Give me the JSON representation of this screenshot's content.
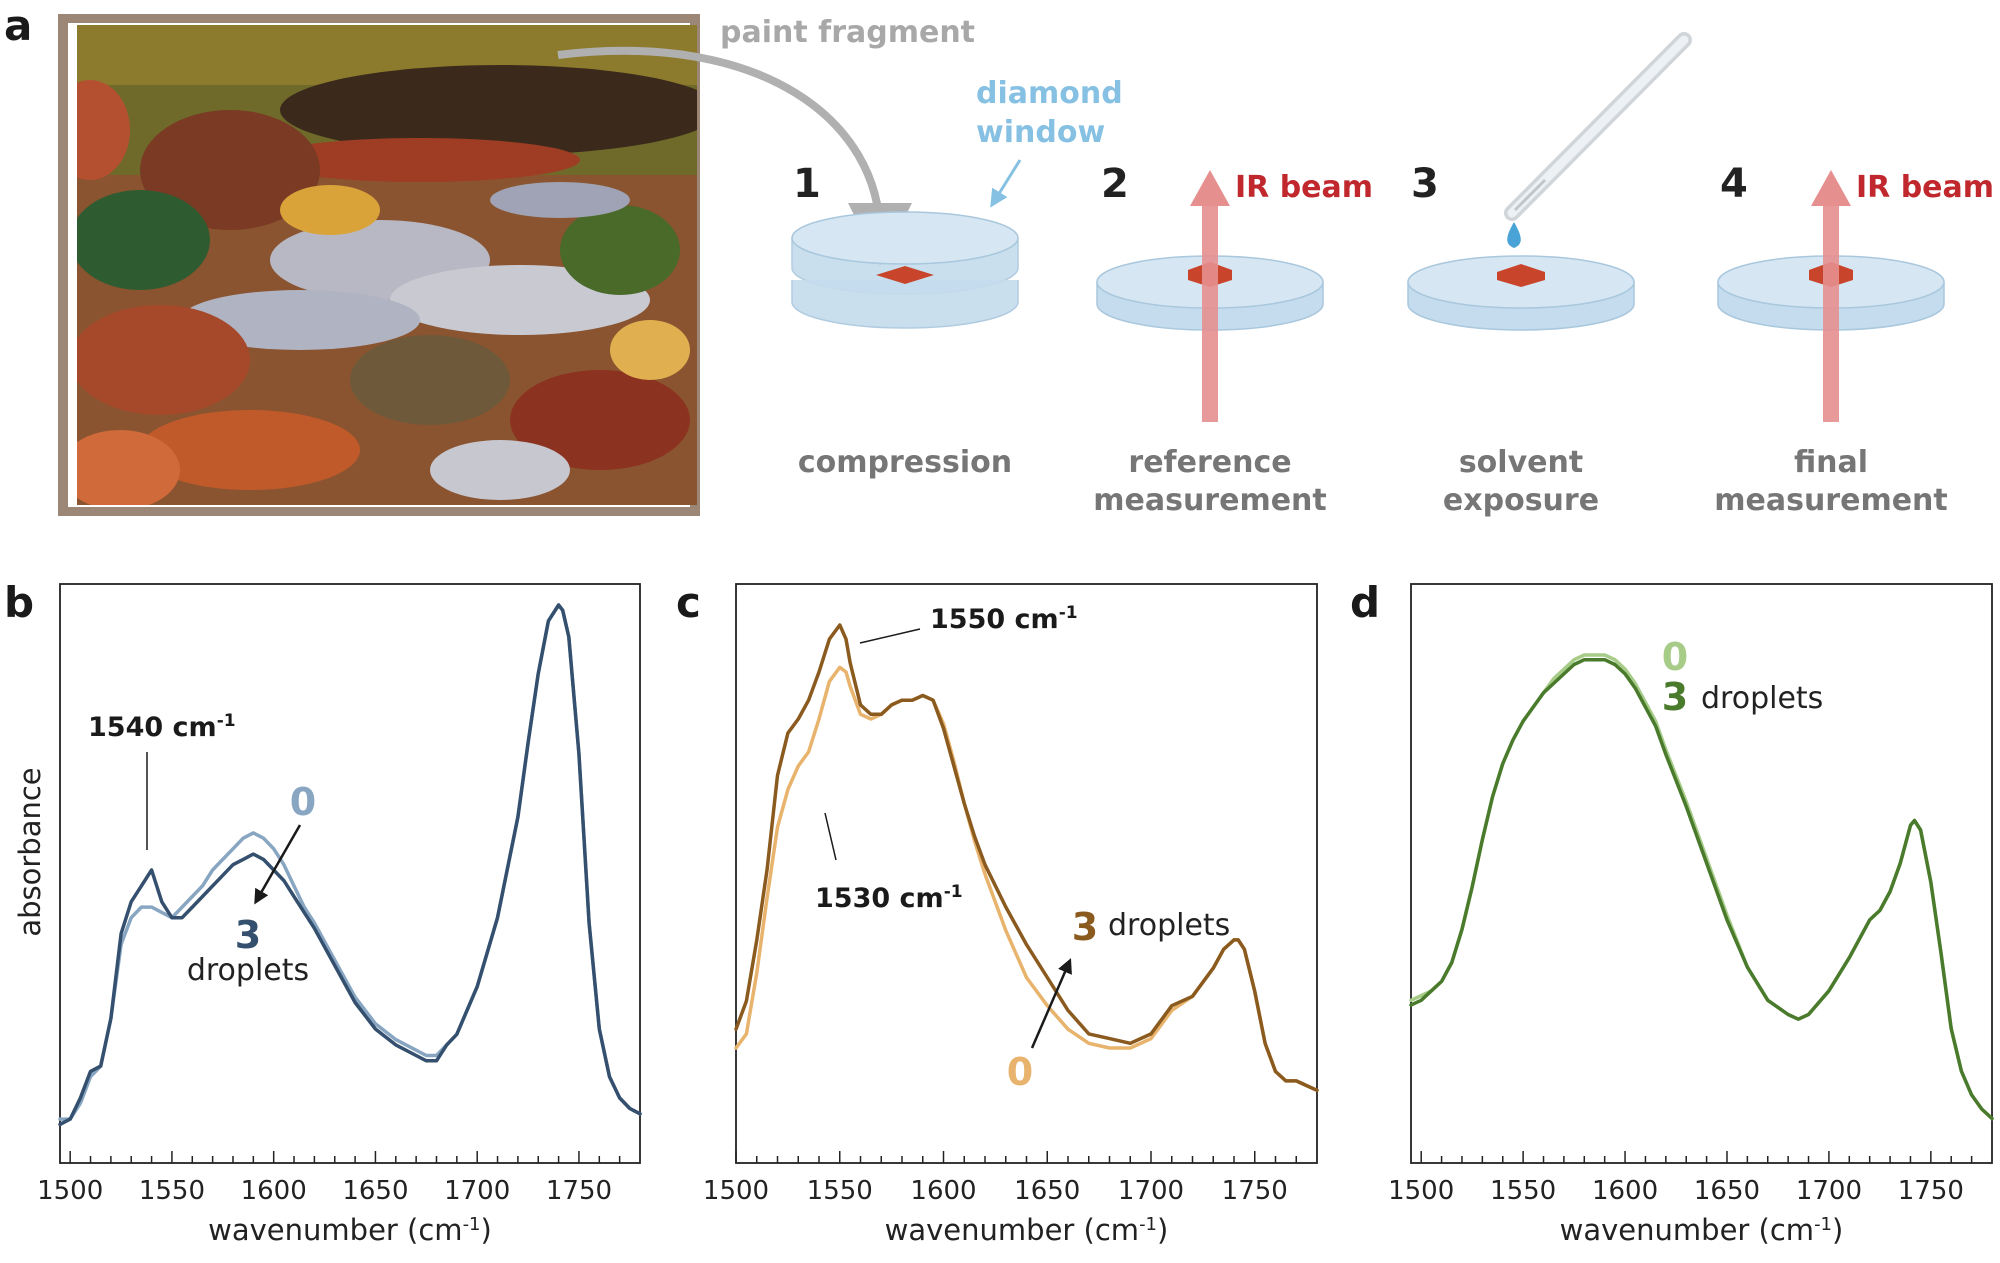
{
  "panel_a": {
    "letter": "a",
    "paint_fragment_label": "paint fragment",
    "diamond_window_label_1": "diamond",
    "diamond_window_label_2": "window",
    "ir_beam_label": "IR beam",
    "steps": [
      {
        "num": "1",
        "label_1": "compression",
        "label_2": ""
      },
      {
        "num": "2",
        "label_1": "reference",
        "label_2": "measurement"
      },
      {
        "num": "3",
        "label_1": "solvent",
        "label_2": "exposure"
      },
      {
        "num": "4",
        "label_1": "final",
        "label_2": "measurement"
      }
    ]
  },
  "colors": {
    "frame": "#9c8676",
    "window": "#c4dced",
    "window_edge": "#a9c7dd",
    "fragment": "#c8452c",
    "ir_arrow": "#e68f8f",
    "droplet": "#4aa3d6",
    "gray_arrow": "#b0b0b0",
    "b_dark": "#34506e",
    "b_light": "#88a6c2",
    "c_dark": "#8a5a1f",
    "c_light": "#e8b36c",
    "d_dark": "#4a7a2c",
    "d_light": "#a6cc88"
  },
  "shared_axis": {
    "ylabel": "absorbance",
    "xlabel_main": "wavenumber (cm",
    "xlabel_sup": "-1",
    "xlabel_close": ")"
  },
  "chart_data": [
    {
      "panel": "b",
      "type": "line",
      "xlabel": "wavenumber (cm-1)",
      "ylabel": "absorbance",
      "xlim": [
        1495,
        1780
      ],
      "ylim": [
        0,
        1
      ],
      "xticks": [
        1500,
        1550,
        1600,
        1650,
        1700,
        1750
      ],
      "annotation": {
        "text": "1540 cm",
        "sup": "-1"
      },
      "series_label_top": "0",
      "series_label_bottom": "3",
      "droplets_label": "droplets",
      "series": [
        {
          "name": "0",
          "x": [
            1495,
            1500,
            1505,
            1510,
            1515,
            1520,
            1525,
            1530,
            1535,
            1540,
            1545,
            1550,
            1555,
            1560,
            1565,
            1570,
            1575,
            1580,
            1585,
            1590,
            1595,
            1600,
            1605,
            1610,
            1615,
            1620,
            1630,
            1640,
            1650,
            1660,
            1670,
            1675,
            1680,
            1685,
            1690,
            1700,
            1710,
            1720,
            1725,
            1730,
            1735,
            1740,
            1742,
            1745,
            1750,
            1755,
            1760,
            1765,
            1770,
            1775,
            1780
          ],
          "y": [
            0.03,
            0.03,
            0.06,
            0.11,
            0.13,
            0.22,
            0.36,
            0.41,
            0.43,
            0.43,
            0.42,
            0.41,
            0.43,
            0.45,
            0.47,
            0.5,
            0.52,
            0.54,
            0.56,
            0.57,
            0.56,
            0.54,
            0.51,
            0.47,
            0.43,
            0.4,
            0.33,
            0.26,
            0.21,
            0.18,
            0.16,
            0.15,
            0.15,
            0.17,
            0.19,
            0.28,
            0.41,
            0.6,
            0.74,
            0.87,
            0.97,
            1.0,
            0.99,
            0.94,
            0.72,
            0.4,
            0.2,
            0.11,
            0.07,
            0.05,
            0.04
          ]
        },
        {
          "name": "3",
          "x": [
            1495,
            1500,
            1505,
            1510,
            1515,
            1520,
            1525,
            1530,
            1535,
            1540,
            1545,
            1550,
            1555,
            1560,
            1565,
            1570,
            1575,
            1580,
            1585,
            1590,
            1595,
            1600,
            1605,
            1610,
            1615,
            1620,
            1630,
            1640,
            1650,
            1660,
            1670,
            1675,
            1680,
            1685,
            1690,
            1700,
            1710,
            1720,
            1725,
            1730,
            1735,
            1740,
            1742,
            1745,
            1750,
            1755,
            1760,
            1765,
            1770,
            1775,
            1780
          ],
          "y": [
            0.02,
            0.03,
            0.07,
            0.12,
            0.13,
            0.22,
            0.38,
            0.44,
            0.47,
            0.5,
            0.44,
            0.41,
            0.41,
            0.43,
            0.45,
            0.47,
            0.49,
            0.51,
            0.52,
            0.53,
            0.52,
            0.5,
            0.48,
            0.45,
            0.42,
            0.39,
            0.32,
            0.25,
            0.2,
            0.17,
            0.15,
            0.14,
            0.14,
            0.17,
            0.19,
            0.28,
            0.41,
            0.6,
            0.74,
            0.87,
            0.97,
            1.0,
            0.99,
            0.94,
            0.72,
            0.4,
            0.2,
            0.11,
            0.07,
            0.05,
            0.04
          ]
        }
      ]
    },
    {
      "panel": "c",
      "type": "line",
      "xlabel": "wavenumber (cm-1)",
      "xlim": [
        1500,
        1780
      ],
      "ylim": [
        0,
        1
      ],
      "xticks": [
        1500,
        1550,
        1600,
        1650,
        1700,
        1750
      ],
      "annotation_top": {
        "text": "1550 cm",
        "sup": "-1"
      },
      "annotation_bottom": {
        "text": "1530 cm",
        "sup": "-1"
      },
      "series_label_top": "3",
      "series_label_bottom": "0",
      "droplets_label": "droplets",
      "series": [
        {
          "name": "3",
          "x": [
            1500,
            1505,
            1510,
            1515,
            1520,
            1525,
            1530,
            1535,
            1540,
            1545,
            1550,
            1553,
            1555,
            1560,
            1565,
            1570,
            1575,
            1580,
            1585,
            1590,
            1595,
            1600,
            1605,
            1610,
            1615,
            1620,
            1630,
            1640,
            1650,
            1660,
            1670,
            1680,
            1690,
            1700,
            1710,
            1720,
            1725,
            1730,
            1735,
            1740,
            1742,
            1745,
            1750,
            1755,
            1760,
            1765,
            1770,
            1775,
            1780
          ],
          "y": [
            0.14,
            0.2,
            0.33,
            0.48,
            0.68,
            0.77,
            0.8,
            0.84,
            0.9,
            0.97,
            1.0,
            0.97,
            0.92,
            0.83,
            0.81,
            0.81,
            0.83,
            0.84,
            0.84,
            0.85,
            0.84,
            0.78,
            0.7,
            0.62,
            0.55,
            0.49,
            0.4,
            0.32,
            0.25,
            0.18,
            0.13,
            0.12,
            0.11,
            0.13,
            0.19,
            0.21,
            0.24,
            0.27,
            0.31,
            0.33,
            0.33,
            0.31,
            0.22,
            0.11,
            0.05,
            0.03,
            0.03,
            0.02,
            0.01
          ]
        },
        {
          "name": "0",
          "x": [
            1500,
            1505,
            1510,
            1515,
            1520,
            1525,
            1530,
            1535,
            1540,
            1545,
            1550,
            1553,
            1555,
            1560,
            1565,
            1570,
            1575,
            1580,
            1585,
            1590,
            1595,
            1600,
            1605,
            1610,
            1615,
            1620,
            1630,
            1640,
            1650,
            1660,
            1670,
            1680,
            1690,
            1700,
            1710,
            1720,
            1725,
            1730,
            1735,
            1740,
            1742,
            1745,
            1750,
            1755,
            1760,
            1765,
            1770,
            1775,
            1780
          ],
          "y": [
            0.1,
            0.13,
            0.26,
            0.42,
            0.57,
            0.65,
            0.7,
            0.73,
            0.8,
            0.88,
            0.91,
            0.9,
            0.87,
            0.81,
            0.8,
            0.81,
            0.83,
            0.84,
            0.84,
            0.85,
            0.84,
            0.79,
            0.71,
            0.62,
            0.54,
            0.47,
            0.35,
            0.25,
            0.19,
            0.14,
            0.11,
            0.1,
            0.1,
            0.12,
            0.18,
            0.21,
            0.24,
            0.27,
            0.31,
            0.33,
            0.33,
            0.31,
            0.22,
            0.11,
            0.05,
            0.03,
            0.03,
            0.02,
            0.01
          ]
        }
      ]
    },
    {
      "panel": "d",
      "type": "line",
      "xlabel": "wavenumber (cm-1)",
      "xlim": [
        1495,
        1780
      ],
      "ylim": [
        0,
        1
      ],
      "xticks": [
        1500,
        1550,
        1600,
        1650,
        1700,
        1750
      ],
      "series_label_top": "0",
      "series_label_bottom": "3",
      "droplets_label": "droplets",
      "series": [
        {
          "name": "0",
          "x": [
            1495,
            1500,
            1505,
            1510,
            1515,
            1520,
            1525,
            1530,
            1535,
            1540,
            1545,
            1550,
            1555,
            1560,
            1565,
            1570,
            1575,
            1580,
            1585,
            1590,
            1595,
            1600,
            1605,
            1610,
            1615,
            1620,
            1630,
            1640,
            1650,
            1660,
            1670,
            1680,
            1685,
            1690,
            1700,
            1710,
            1720,
            1725,
            1730,
            1735,
            1740,
            1742,
            1745,
            1750,
            1755,
            1760,
            1765,
            1770,
            1775,
            1780
          ],
          "y": [
            0.27,
            0.28,
            0.29,
            0.31,
            0.35,
            0.42,
            0.51,
            0.61,
            0.7,
            0.77,
            0.82,
            0.86,
            0.89,
            0.92,
            0.95,
            0.97,
            0.99,
            1.0,
            1.0,
            1.0,
            0.99,
            0.97,
            0.94,
            0.9,
            0.86,
            0.8,
            0.69,
            0.57,
            0.45,
            0.34,
            0.27,
            0.24,
            0.23,
            0.24,
            0.29,
            0.36,
            0.44,
            0.46,
            0.5,
            0.56,
            0.64,
            0.65,
            0.63,
            0.52,
            0.37,
            0.21,
            0.12,
            0.07,
            0.04,
            0.02
          ]
        },
        {
          "name": "3",
          "x": [
            1495,
            1500,
            1505,
            1510,
            1515,
            1520,
            1525,
            1530,
            1535,
            1540,
            1545,
            1550,
            1555,
            1560,
            1565,
            1570,
            1575,
            1580,
            1585,
            1590,
            1595,
            1600,
            1605,
            1610,
            1615,
            1620,
            1630,
            1640,
            1650,
            1660,
            1670,
            1680,
            1685,
            1690,
            1700,
            1710,
            1720,
            1725,
            1730,
            1735,
            1740,
            1742,
            1745,
            1750,
            1755,
            1760,
            1765,
            1770,
            1775,
            1780
          ],
          "y": [
            0.26,
            0.27,
            0.29,
            0.31,
            0.35,
            0.42,
            0.51,
            0.61,
            0.7,
            0.77,
            0.82,
            0.86,
            0.89,
            0.92,
            0.94,
            0.96,
            0.98,
            0.99,
            0.99,
            0.99,
            0.98,
            0.96,
            0.93,
            0.89,
            0.85,
            0.79,
            0.68,
            0.56,
            0.44,
            0.34,
            0.27,
            0.24,
            0.23,
            0.24,
            0.29,
            0.36,
            0.44,
            0.46,
            0.5,
            0.56,
            0.64,
            0.65,
            0.63,
            0.52,
            0.37,
            0.21,
            0.12,
            0.07,
            0.04,
            0.02
          ]
        }
      ]
    }
  ]
}
